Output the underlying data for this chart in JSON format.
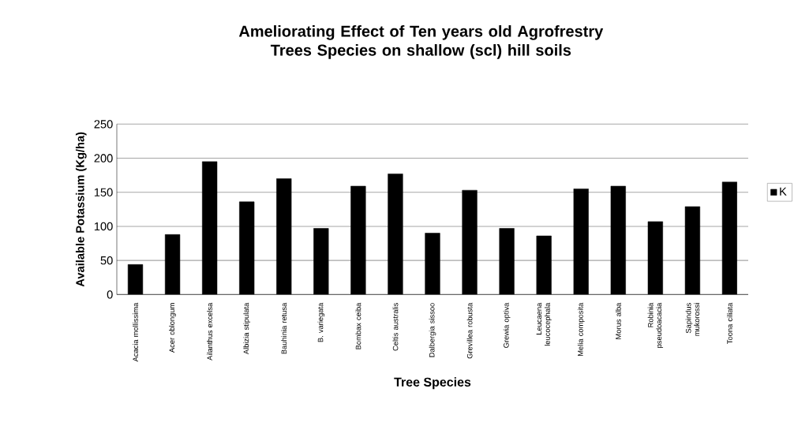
{
  "chart_data": {
    "type": "bar",
    "title": "Ameliorating Effect of Ten years old Agrofrestry Trees Species on shallow (scl) hill soils",
    "xlabel": "Tree Species",
    "ylabel": "Available Potassium (Kg/ha)",
    "categories": [
      "Acacia mollissima",
      "Acer oblongum",
      "Ailanthus excelsa",
      "Albizia stipulata",
      "Bauhinia retusa",
      "B. variegata",
      "Bombax ceiba",
      "Celtis australis",
      "Dalbergia sissoo",
      "Grevillea robusta",
      "Grewia optiva",
      "Leucaena leucocephala",
      "Melia composita",
      "Morus alba",
      "Robinia pseudoacacia",
      "Sapindus mukorossi",
      "Toona ciliata"
    ],
    "series": [
      {
        "name": "K",
        "color": "#000000",
        "values": [
          44,
          88,
          195,
          136,
          170,
          97,
          159,
          177,
          90,
          153,
          97,
          86,
          155,
          159,
          107,
          129,
          165
        ]
      }
    ],
    "ylim": [
      0,
      250
    ],
    "yticks": [
      0,
      50,
      100,
      150,
      200,
      250
    ],
    "grid": "y",
    "legend": "right"
  }
}
